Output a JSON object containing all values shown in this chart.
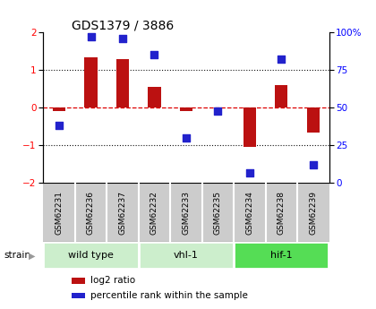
{
  "title": "GDS1379 / 3886",
  "samples": [
    "GSM62231",
    "GSM62236",
    "GSM62237",
    "GSM62232",
    "GSM62233",
    "GSM62235",
    "GSM62234",
    "GSM62238",
    "GSM62239"
  ],
  "log2_ratio": [
    -0.1,
    1.35,
    1.3,
    0.55,
    -0.08,
    0.0,
    -1.05,
    0.6,
    -0.65
  ],
  "percentile_rank": [
    38,
    97,
    96,
    85,
    30,
    48,
    7,
    82,
    12
  ],
  "groups": [
    {
      "label": "wild type",
      "start": 0,
      "end": 3,
      "color": "#cceecc"
    },
    {
      "label": "vhl-1",
      "start": 3,
      "end": 6,
      "color": "#cceecc"
    },
    {
      "label": "hif-1",
      "start": 6,
      "end": 9,
      "color": "#55dd55"
    }
  ],
  "group_colors": [
    "#cceecc",
    "#cceecc",
    "#55dd55"
  ],
  "ylim_left": [
    -2,
    2
  ],
  "ylim_right": [
    0,
    100
  ],
  "yticks_left": [
    -2,
    -1,
    0,
    1,
    2
  ],
  "yticks_right": [
    0,
    25,
    50,
    75,
    100
  ],
  "yticklabels_right": [
    "0",
    "25",
    "50",
    "75",
    "100%"
  ],
  "bar_color": "#bb1111",
  "dot_color": "#2222cc",
  "hline_color": "#dd0000",
  "gridline_color": "#111111",
  "background_color": "#ffffff",
  "sample_box_color": "#cccccc",
  "strain_label": "strain",
  "legend_bar": "log2 ratio",
  "legend_dot": "percentile rank within the sample",
  "bar_width": 0.4,
  "dot_size": 35
}
